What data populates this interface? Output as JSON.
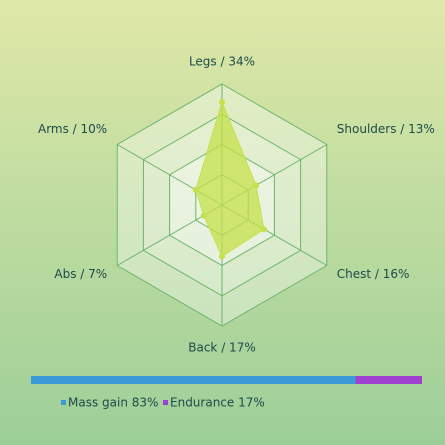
{
  "chart_data": [
    {
      "type": "radar",
      "categories": [
        "Legs / 34%",
        "Shoulders / 13%",
        "Chest / 16%",
        "Back / 17%",
        "Abs / 7%",
        "Arms / 10%"
      ],
      "values": [
        34,
        13,
        16,
        17,
        7,
        10
      ],
      "color": "#c4e04a",
      "ylim": [
        0,
        40
      ],
      "yticks": [
        10,
        20,
        30,
        40
      ],
      "grid": true
    },
    {
      "type": "stacked-bar",
      "series": [
        {
          "name": "Mass gain 83%",
          "color": "#3a9ad8",
          "values": [
            83
          ]
        },
        {
          "name": "Endurance 17%",
          "color": "#a040d0",
          "values": [
            17
          ]
        }
      ],
      "xlim": [
        0,
        100
      ],
      "legend": "bottom"
    }
  ]
}
